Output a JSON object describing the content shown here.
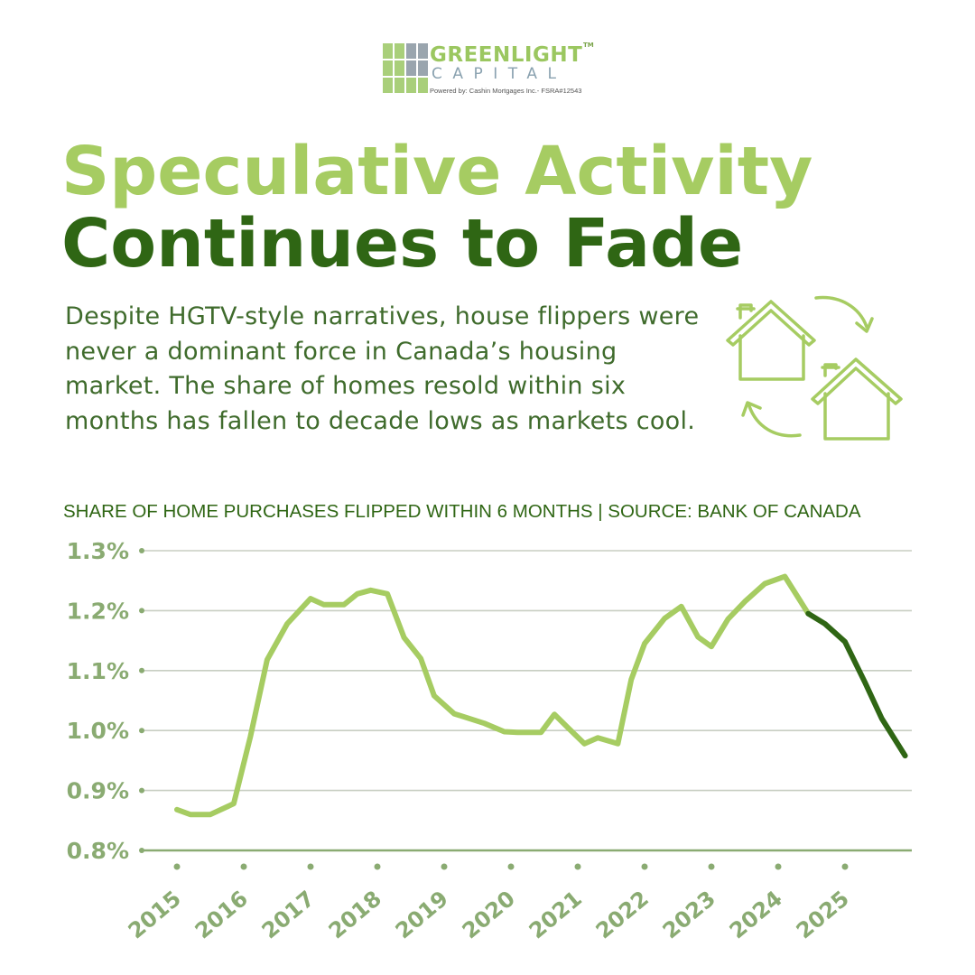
{
  "brand": {
    "name_line1": "GREENLIGHT",
    "name_line2": "CAPITAL",
    "trademark": "TM",
    "powered_by": "Powered by:  Cashin Mortgages Inc.- FSRA#12543"
  },
  "headline": {
    "line1": "Speculative Activity",
    "line2": "Continues to Fade"
  },
  "description": "Despite HGTV-style narratives, house flippers were never a dominant force in Canada’s housing market. The share of homes resold within six months has fallen to decade lows as markets cool.",
  "illustration": {
    "icon": "houses-cycle-icon"
  },
  "colors": {
    "light_green": "#a6cc62",
    "dark_green": "#2f6614",
    "axis_green": "#8aab72",
    "grid": "#c8cec2"
  },
  "chart_data": {
    "type": "line",
    "title": "SHARE OF HOME PURCHASES FLIPPED WITHIN 6 MONTHS | SOURCE: BANK OF CANADA",
    "xlabel": "",
    "ylabel": "",
    "ylim": [
      0.8,
      1.3
    ],
    "xlim": [
      2015,
      2026
    ],
    "grid": true,
    "yticks": [
      {
        "value": 1.3,
        "label": "1.3%"
      },
      {
        "value": 1.2,
        "label": "1.2%"
      },
      {
        "value": 1.1,
        "label": "1.1%"
      },
      {
        "value": 1.0,
        "label": "1.0%"
      },
      {
        "value": 0.9,
        "label": "0.9%"
      },
      {
        "value": 0.8,
        "label": "0.8%"
      }
    ],
    "xticks": [
      {
        "value": 2015,
        "label": "2015"
      },
      {
        "value": 2016,
        "label": "2016"
      },
      {
        "value": 2017,
        "label": "2017"
      },
      {
        "value": 2018,
        "label": "2018"
      },
      {
        "value": 2019,
        "label": "2019"
      },
      {
        "value": 2020,
        "label": "2020"
      },
      {
        "value": 2021,
        "label": "2021"
      },
      {
        "value": 2022,
        "label": "2022"
      },
      {
        "value": 2023,
        "label": "2023"
      },
      {
        "value": 2024,
        "label": "2024"
      },
      {
        "value": 2025,
        "label": "2025"
      }
    ],
    "series": [
      {
        "color": "#a6cc62",
        "points": [
          [
            2015.0,
            0.868
          ],
          [
            2015.2,
            0.86
          ],
          [
            2015.5,
            0.86
          ],
          [
            2015.85,
            0.878
          ],
          [
            2016.1,
            0.99
          ],
          [
            2016.35,
            1.118
          ],
          [
            2016.65,
            1.178
          ],
          [
            2017.0,
            1.22
          ],
          [
            2017.2,
            1.21
          ],
          [
            2017.5,
            1.21
          ],
          [
            2017.7,
            1.228
          ],
          [
            2017.9,
            1.234
          ],
          [
            2018.15,
            1.228
          ],
          [
            2018.4,
            1.155
          ],
          [
            2018.65,
            1.12
          ],
          [
            2018.85,
            1.058
          ],
          [
            2019.15,
            1.028
          ],
          [
            2019.6,
            1.012
          ],
          [
            2019.9,
            0.998
          ],
          [
            2020.1,
            0.997
          ],
          [
            2020.45,
            0.997
          ],
          [
            2020.65,
            1.027
          ],
          [
            2020.85,
            1.005
          ],
          [
            2021.1,
            0.978
          ],
          [
            2021.3,
            0.988
          ],
          [
            2021.6,
            0.978
          ],
          [
            2021.8,
            1.085
          ],
          [
            2022.0,
            1.145
          ],
          [
            2022.3,
            1.187
          ],
          [
            2022.55,
            1.207
          ],
          [
            2022.8,
            1.156
          ],
          [
            2023.0,
            1.14
          ],
          [
            2023.25,
            1.186
          ],
          [
            2023.5,
            1.215
          ],
          [
            2023.8,
            1.245
          ],
          [
            2024.1,
            1.257
          ],
          [
            2024.45,
            1.195
          ]
        ]
      },
      {
        "color": "#2f6614",
        "points": [
          [
            2024.45,
            1.195
          ],
          [
            2024.7,
            1.178
          ],
          [
            2025.0,
            1.148
          ],
          [
            2025.3,
            1.08
          ],
          [
            2025.55,
            1.02
          ],
          [
            2025.9,
            0.958
          ]
        ]
      }
    ]
  }
}
